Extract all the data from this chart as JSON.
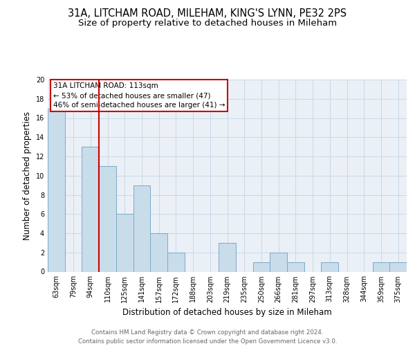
{
  "title_line1": "31A, LITCHAM ROAD, MILEHAM, KING'S LYNN, PE32 2PS",
  "title_line2": "Size of property relative to detached houses in Mileham",
  "xlabel": "Distribution of detached houses by size in Mileham",
  "ylabel": "Number of detached properties",
  "categories": [
    "63sqm",
    "79sqm",
    "94sqm",
    "110sqm",
    "125sqm",
    "141sqm",
    "157sqm",
    "172sqm",
    "188sqm",
    "203sqm",
    "219sqm",
    "235sqm",
    "250sqm",
    "266sqm",
    "281sqm",
    "297sqm",
    "313sqm",
    "328sqm",
    "344sqm",
    "359sqm",
    "375sqm"
  ],
  "values": [
    17,
    0,
    13,
    11,
    6,
    9,
    4,
    2,
    0,
    0,
    3,
    0,
    1,
    2,
    1,
    0,
    1,
    0,
    0,
    1,
    1
  ],
  "bar_color": "#c9dcea",
  "bar_edge_color": "#7aaac8",
  "highlight_line_color": "#cc0000",
  "annotation_box_text_line1": "31A LITCHAM ROAD: 113sqm",
  "annotation_box_text_line2": "← 53% of detached houses are smaller (47)",
  "annotation_box_text_line3": "46% of semi-detached houses are larger (41) →",
  "annotation_box_edge_color": "#cc0000",
  "annotation_box_face_color": "#ffffff",
  "ylim": [
    0,
    20
  ],
  "yticks": [
    0,
    2,
    4,
    6,
    8,
    10,
    12,
    14,
    16,
    18,
    20
  ],
  "grid_color": "#c8d8e8",
  "background_color": "#eaf0f6",
  "footer_line1": "Contains HM Land Registry data © Crown copyright and database right 2024.",
  "footer_line2": "Contains public sector information licensed under the Open Government Licence v3.0.",
  "title_fontsize": 10.5,
  "subtitle_fontsize": 9.5,
  "tick_fontsize": 7,
  "ylabel_fontsize": 8.5,
  "xlabel_fontsize": 8.5,
  "annotation_fontsize": 7.5,
  "footer_fontsize": 6.2
}
